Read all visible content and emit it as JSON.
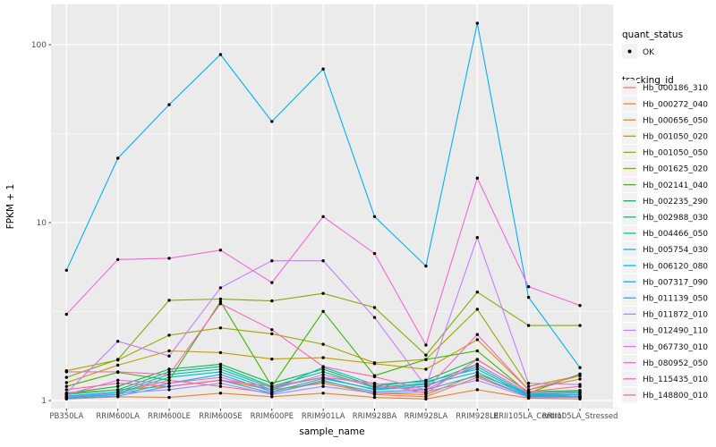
{
  "figure": {
    "background": "#FFFFFF",
    "panel_background": "#EBEBEB",
    "gridline_color": "#FFFFFF",
    "legend_key_background": "#F2F2F2",
    "tick_text_color": "#4D4D4D",
    "point_color": "#000000"
  },
  "axes": {
    "x_label": "sample_name",
    "y_label": "FPKM + 1",
    "y_ticks": [
      {
        "label": "1",
        "value": 1
      },
      {
        "label": "10",
        "value": 10
      },
      {
        "label": "100",
        "value": 100
      }
    ]
  },
  "legend": {
    "quant_status_title": "quant_status",
    "quant_status_items": [
      {
        "label": "OK",
        "marker": "black-point"
      }
    ],
    "tracking_id_title": "tracking_id"
  },
  "chart_data": {
    "type": "line",
    "title": "",
    "xlabel": "sample_name",
    "ylabel": "FPKM + 1",
    "y_scale": "log10",
    "ylim": [
      1,
      140
    ],
    "y_minor_gridlines": [
      3.1623,
      31.623
    ],
    "grid": true,
    "legend_position": "right",
    "point_marker": "small black dot (quant_status = OK)",
    "categories": [
      "PB350LA",
      "RRIM600LA",
      "RRIM600LE",
      "RRIM600SE",
      "RRIM600PE",
      "RRIM901LA",
      "RRIM928BA",
      "RRIM928LA",
      "RRIM928LE",
      "RRII105LA_Control",
      "RRII105LA_Stressed"
    ],
    "series": [
      {
        "name": "Hb_000186_310",
        "color": "#F8766D",
        "values": [
          1.05,
          1.1,
          1.3,
          1.2,
          1.1,
          1.3,
          1.08,
          1.05,
          1.35,
          1.05,
          1.04
        ]
      },
      {
        "name": "Hb_000272_040",
        "color": "#EA8331",
        "values": [
          1.02,
          1.05,
          1.04,
          1.1,
          1.05,
          1.1,
          1.04,
          1.02,
          1.15,
          1.03,
          1.02
        ]
      },
      {
        "name": "Hb_000656_050",
        "color": "#D89000",
        "values": [
          1.1,
          1.15,
          1.2,
          1.3,
          1.15,
          1.25,
          1.1,
          1.08,
          1.4,
          1.1,
          1.05
        ]
      },
      {
        "name": "Hb_001050_020",
        "color": "#C09B00",
        "values": [
          1.26,
          1.58,
          1.9,
          1.86,
          1.71,
          1.74,
          1.61,
          1.5,
          2.2,
          1.15,
          1.32
        ]
      },
      {
        "name": "Hb_001050_050",
        "color": "#A3A500",
        "values": [
          1.47,
          1.69,
          2.33,
          2.56,
          2.37,
          2.07,
          1.63,
          1.7,
          3.26,
          1.2,
          1.38
        ]
      },
      {
        "name": "Hb_001625_020",
        "color": "#7CAE00",
        "values": [
          1.35,
          1.7,
          3.66,
          3.72,
          3.63,
          4.0,
          3.33,
          1.8,
          4.07,
          2.64,
          2.64
        ]
      },
      {
        "name": "Hb_002141_040",
        "color": "#39B600",
        "values": [
          1.2,
          1.44,
          1.3,
          3.6,
          1.2,
          3.17,
          1.38,
          1.7,
          1.9,
          1.1,
          1.41
        ]
      },
      {
        "name": "Hb_002235_290",
        "color": "#00BB4E",
        "values": [
          1.1,
          1.2,
          1.5,
          1.6,
          1.25,
          1.5,
          1.2,
          1.3,
          1.7,
          1.12,
          1.14
        ]
      },
      {
        "name": "Hb_002988_030",
        "color": "#00C087",
        "values": [
          1.08,
          1.15,
          1.45,
          1.55,
          1.2,
          1.45,
          1.18,
          1.25,
          1.6,
          1.1,
          1.12
        ]
      },
      {
        "name": "Hb_004466_050",
        "color": "#00C0B2",
        "values": [
          1.06,
          1.12,
          1.4,
          1.5,
          1.18,
          1.35,
          1.15,
          1.2,
          1.55,
          1.08,
          1.1
        ]
      },
      {
        "name": "Hb_005754_030",
        "color": "#00BFC4",
        "values": [
          1.05,
          1.1,
          1.35,
          1.45,
          1.15,
          1.54,
          1.23,
          1.28,
          1.5,
          1.07,
          1.08
        ]
      },
      {
        "name": "Hb_006120_080",
        "color": "#00B9E3",
        "values": [
          1.04,
          1.08,
          1.25,
          1.4,
          1.12,
          1.33,
          1.16,
          1.23,
          1.44,
          1.06,
          1.06
        ]
      },
      {
        "name": "Hb_007317_090",
        "color": "#00B0F6",
        "values": [
          5.4,
          23.0,
          46.0,
          88.0,
          37.0,
          73.0,
          10.8,
          5.7,
          132.0,
          3.8,
          1.53
        ]
      },
      {
        "name": "Hb_011139_050",
        "color": "#3DA1FF",
        "values": [
          1.03,
          1.06,
          1.2,
          1.3,
          1.1,
          1.28,
          1.12,
          1.15,
          1.38,
          1.05,
          1.05
        ]
      },
      {
        "name": "Hb_011872_010",
        "color": "#9C8DFF",
        "values": [
          1.05,
          1.1,
          1.15,
          1.25,
          1.08,
          1.2,
          1.1,
          1.12,
          1.3,
          1.04,
          1.04
        ]
      },
      {
        "name": "Hb_012490_110",
        "color": "#C77CFF",
        "values": [
          1.1,
          2.15,
          1.78,
          4.3,
          6.1,
          6.1,
          2.93,
          1.2,
          8.24,
          1.25,
          1.23
        ]
      },
      {
        "name": "Hb_067730_010",
        "color": "#E76BF3",
        "values": [
          1.08,
          1.3,
          1.25,
          1.35,
          1.15,
          1.4,
          1.2,
          1.15,
          1.6,
          1.1,
          1.1
        ]
      },
      {
        "name": "Hb_080952_050",
        "color": "#FA62DB",
        "values": [
          3.05,
          6.2,
          6.3,
          7.0,
          4.6,
          10.8,
          6.7,
          2.05,
          17.8,
          4.36,
          3.42
        ]
      },
      {
        "name": "Hb_115435_010",
        "color": "#FF62BE",
        "values": [
          1.45,
          1.45,
          1.4,
          3.5,
          2.5,
          1.55,
          1.36,
          1.15,
          2.35,
          1.15,
          1.38
        ]
      },
      {
        "name": "Hb_148800_010",
        "color": "#FF6894",
        "values": [
          1.15,
          1.25,
          1.2,
          1.3,
          1.2,
          1.35,
          1.25,
          1.1,
          1.7,
          1.12,
          1.2
        ]
      }
    ]
  }
}
